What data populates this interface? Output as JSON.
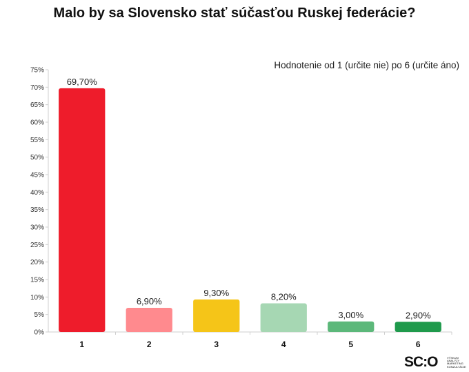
{
  "chart_data": {
    "type": "bar",
    "title": "Malo by sa Slovensko stať súčasťou Ruskej federácie?",
    "subtitle": "Hodnotenie  od 1 (určite nie) po 6 (určite áno)",
    "categories": [
      "1",
      "2",
      "3",
      "4",
      "5",
      "6"
    ],
    "values": [
      69.7,
      6.9,
      9.3,
      8.2,
      3.0,
      2.9
    ],
    "value_labels": [
      "69,70%",
      "6,90%",
      "9,30%",
      "8,20%",
      "3,00%",
      "2,90%"
    ],
    "colors": [
      "#ee1c2b",
      "#ff8a8e",
      "#f5c518",
      "#a6d7b3",
      "#5cb87a",
      "#1f9a4c"
    ],
    "ylim": [
      0,
      75
    ],
    "yticks": [
      0,
      5,
      10,
      15,
      20,
      25,
      30,
      35,
      40,
      45,
      50,
      55,
      60,
      65,
      70,
      75
    ],
    "ytick_labels": [
      "0%",
      "5%",
      "10%",
      "15%",
      "20%",
      "25%",
      "30%",
      "35%",
      "40%",
      "45%",
      "50%",
      "55%",
      "60%",
      "65%",
      "70%",
      "75%"
    ],
    "xlabel": "",
    "ylabel": "",
    "grid": false
  },
  "logo": {
    "text": "SC:O",
    "tagline": "VÝSKUM ANALÝZY MARKETING KONZULTÁCIE"
  }
}
